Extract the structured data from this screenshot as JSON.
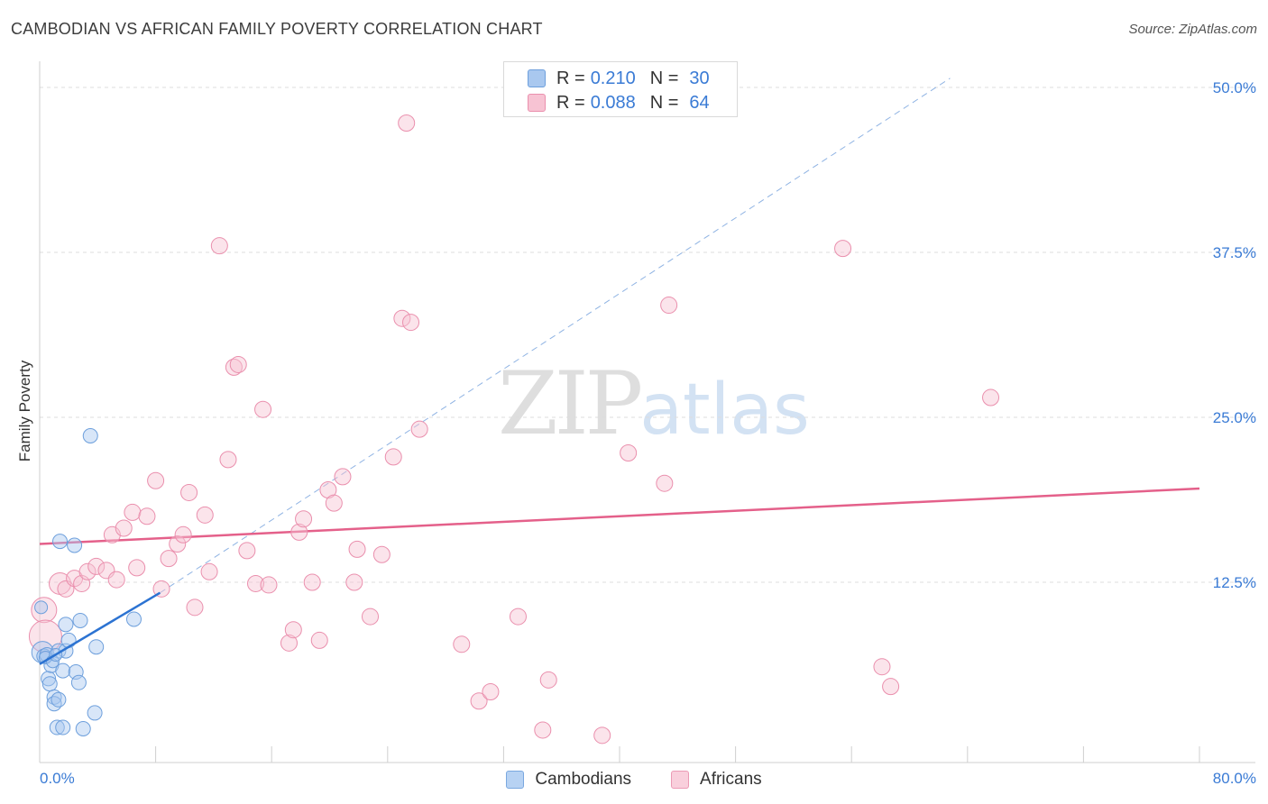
{
  "title": "CAMBODIAN VS AFRICAN FAMILY POVERTY CORRELATION CHART",
  "source": "Source: ZipAtlas.com",
  "watermark": {
    "part1": "ZIP",
    "part2": "atlas"
  },
  "legend_top": {
    "rows": [
      {
        "r_label": "R =",
        "r_value": "0.210",
        "n_label": "N =",
        "n_value": "30",
        "color": "#a9c8ef",
        "border": "#6d9fdc"
      },
      {
        "r_label": "R =",
        "r_value": "0.088",
        "n_label": "N =",
        "n_value": "64",
        "color": "#f7c3d3",
        "border": "#ea8fad"
      }
    ]
  },
  "legend_bottom": [
    {
      "label": "Cambodians",
      "color": "#b7d2f3",
      "border": "#7aa8e0"
    },
    {
      "label": "Africans",
      "color": "#f9cfdc",
      "border": "#ec9ab5"
    }
  ],
  "chart_data": {
    "type": "scatter",
    "title": "CAMBODIAN VS AFRICAN FAMILY POVERTY CORRELATION CHART",
    "xlabel": "",
    "ylabel": "Family Poverty",
    "xlim": [
      0,
      80
    ],
    "ylim": [
      0,
      51.5
    ],
    "x_tick_labels": [
      {
        "value": 0,
        "label": "0.0%"
      },
      {
        "value": 80,
        "label": "80.0%"
      }
    ],
    "x_tick_marks": [
      0,
      8,
      16,
      24,
      32,
      40,
      48,
      56,
      64,
      72,
      80
    ],
    "y_ticks": [
      {
        "value": 12.5,
        "label": "12.5%"
      },
      {
        "value": 25,
        "label": "25.0%"
      },
      {
        "value": 37.5,
        "label": "37.5%"
      },
      {
        "value": 50,
        "label": "50.0%"
      }
    ],
    "grid": true,
    "legend_position": "top-center",
    "series": [
      {
        "name": "Cambodians",
        "fill": "rgba(169,200,239,0.45)",
        "stroke": "#6d9fdc",
        "trend": {
          "x0": 0,
          "y0": 6.3,
          "x1": 8.3,
          "y1": 11.7,
          "ext_x1": 62.8,
          "ext_y1": 50.7,
          "color": "#2c73d2"
        },
        "points": [
          [
            0.1,
            10.6,
            7
          ],
          [
            0.2,
            7.2,
            12
          ],
          [
            0.3,
            6.9,
            8
          ],
          [
            0.5,
            7.0,
            8
          ],
          [
            0.6,
            5.2,
            8
          ],
          [
            0.7,
            4.8,
            8
          ],
          [
            0.8,
            6.2,
            8
          ],
          [
            1.0,
            3.8,
            8
          ],
          [
            1.0,
            3.3,
            8
          ],
          [
            1.2,
            1.5,
            8
          ],
          [
            1.3,
            3.6,
            8
          ],
          [
            1.3,
            7.3,
            8
          ],
          [
            1.4,
            15.6,
            8
          ],
          [
            1.6,
            5.8,
            8
          ],
          [
            1.6,
            1.5,
            8
          ],
          [
            1.8,
            7.3,
            8
          ],
          [
            1.8,
            9.3,
            8
          ],
          [
            2.0,
            8.1,
            8
          ],
          [
            2.4,
            15.3,
            8
          ],
          [
            2.5,
            5.7,
            8
          ],
          [
            2.7,
            4.9,
            8
          ],
          [
            2.8,
            9.6,
            8
          ],
          [
            3.0,
            1.4,
            8
          ],
          [
            3.5,
            23.6,
            8
          ],
          [
            3.8,
            2.6,
            8
          ],
          [
            3.9,
            7.6,
            8
          ],
          [
            6.5,
            9.7,
            8
          ],
          [
            0.4,
            6.8,
            7
          ],
          [
            0.9,
            6.5,
            7
          ],
          [
            1.1,
            7.0,
            7
          ]
        ]
      },
      {
        "name": "Africans",
        "fill": "rgba(247,195,211,0.45)",
        "stroke": "#ea8fad",
        "trend": {
          "x0": 0,
          "y0": 15.4,
          "x1": 80,
          "y1": 19.6,
          "color": "#e4608a"
        },
        "points": [
          [
            0.3,
            10.4,
            14
          ],
          [
            0.4,
            8.4,
            18
          ],
          [
            1.4,
            12.4,
            12
          ],
          [
            1.8,
            12.0,
            9
          ],
          [
            2.4,
            12.8,
            9
          ],
          [
            2.9,
            12.4,
            9
          ],
          [
            3.3,
            13.3,
            9
          ],
          [
            3.9,
            13.7,
            9
          ],
          [
            4.6,
            13.4,
            9
          ],
          [
            5.0,
            16.1,
            9
          ],
          [
            5.3,
            12.7,
            9
          ],
          [
            5.8,
            16.6,
            9
          ],
          [
            6.4,
            17.8,
            9
          ],
          [
            6.7,
            13.6,
            9
          ],
          [
            7.4,
            17.5,
            9
          ],
          [
            8.0,
            20.2,
            9
          ],
          [
            8.4,
            12.0,
            9
          ],
          [
            8.9,
            14.3,
            9
          ],
          [
            9.5,
            15.4,
            9
          ],
          [
            9.9,
            16.1,
            9
          ],
          [
            10.3,
            19.3,
            9
          ],
          [
            10.7,
            10.6,
            9
          ],
          [
            11.4,
            17.6,
            9
          ],
          [
            11.7,
            13.3,
            9
          ],
          [
            12.4,
            38.0,
            9
          ],
          [
            13.0,
            21.8,
            9
          ],
          [
            13.4,
            28.8,
            9
          ],
          [
            13.7,
            29.0,
            9
          ],
          [
            14.3,
            14.9,
            9
          ],
          [
            14.9,
            12.4,
            9
          ],
          [
            15.4,
            25.6,
            9
          ],
          [
            15.8,
            12.3,
            9
          ],
          [
            17.2,
            7.9,
            9
          ],
          [
            17.5,
            8.9,
            9
          ],
          [
            17.9,
            16.3,
            9
          ],
          [
            18.2,
            17.3,
            9
          ],
          [
            18.8,
            12.5,
            9
          ],
          [
            19.3,
            8.1,
            9
          ],
          [
            19.9,
            19.5,
            9
          ],
          [
            20.3,
            18.5,
            9
          ],
          [
            20.9,
            20.5,
            9
          ],
          [
            21.7,
            12.5,
            9
          ],
          [
            21.9,
            15.0,
            9
          ],
          [
            22.8,
            9.9,
            9
          ],
          [
            23.6,
            14.6,
            9
          ],
          [
            24.4,
            22.0,
            9
          ],
          [
            25.0,
            32.5,
            9
          ],
          [
            25.6,
            32.2,
            9
          ],
          [
            26.2,
            24.1,
            9
          ],
          [
            25.3,
            47.3,
            9
          ],
          [
            29.1,
            7.8,
            9
          ],
          [
            30.3,
            3.5,
            9
          ],
          [
            31.1,
            4.2,
            9
          ],
          [
            33.0,
            9.9,
            9
          ],
          [
            35.1,
            5.1,
            9
          ],
          [
            34.7,
            1.3,
            9
          ],
          [
            38.8,
            0.9,
            9
          ],
          [
            40.6,
            22.3,
            9
          ],
          [
            43.1,
            20.0,
            9
          ],
          [
            43.4,
            33.5,
            9
          ],
          [
            55.4,
            37.8,
            9
          ],
          [
            58.1,
            6.1,
            9
          ],
          [
            58.7,
            4.6,
            9
          ],
          [
            65.6,
            26.5,
            9
          ]
        ]
      }
    ]
  }
}
